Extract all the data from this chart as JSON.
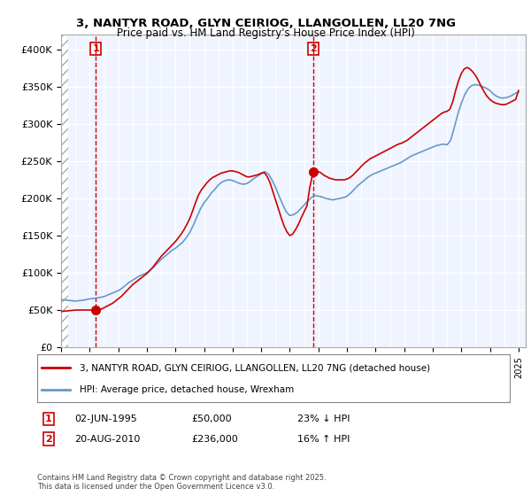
{
  "title1": "3, NANTYR ROAD, GLYN CEIRIOG, LLANGOLLEN, LL20 7NG",
  "title2": "Price paid vs. HM Land Registry's House Price Index (HPI)",
  "ylabel_ticks": [
    "£0",
    "£50K",
    "£100K",
    "£150K",
    "£200K",
    "£250K",
    "£300K",
    "£350K",
    "£400K"
  ],
  "ytick_values": [
    0,
    50000,
    100000,
    150000,
    200000,
    250000,
    300000,
    350000,
    400000
  ],
  "ylim": [
    0,
    420000
  ],
  "xlim_start": 1993.0,
  "xlim_end": 2025.5,
  "hpi_color": "#6699cc",
  "price_color": "#cc0000",
  "transaction1": {
    "date": "02-JUN-1995",
    "price": 50000,
    "label": "1",
    "x": 1995.42
  },
  "transaction2": {
    "date": "20-AUG-2010",
    "price": 236000,
    "label": "2",
    "x": 2010.63
  },
  "legend_line1": "3, NANTYR ROAD, GLYN CEIRIOG, LLANGOLLEN, LL20 7NG (detached house)",
  "legend_line2": "HPI: Average price, detached house, Wrexham",
  "annotation1": "02-JUN-1995          £50,000          23% ↓ HPI",
  "annotation2": "20-AUG-2010          £236,000          16% ↑ HPI",
  "footer": "Contains HM Land Registry data © Crown copyright and database right 2025.\nThis data is licensed under the Open Government Licence v3.0.",
  "hatch_end": 1993.5,
  "background_color": "#ffffff",
  "plot_bg": "#f0f4ff",
  "hatch_color": "#c8c8c8",
  "grid_color": "#ffffff",
  "hpi_data_x": [
    1993.0,
    1993.25,
    1993.5,
    1993.75,
    1994.0,
    1994.25,
    1994.5,
    1994.75,
    1995.0,
    1995.25,
    1995.5,
    1995.75,
    1996.0,
    1996.25,
    1996.5,
    1996.75,
    1997.0,
    1997.25,
    1997.5,
    1997.75,
    1998.0,
    1998.25,
    1998.5,
    1998.75,
    1999.0,
    1999.25,
    1999.5,
    1999.75,
    2000.0,
    2000.25,
    2000.5,
    2000.75,
    2001.0,
    2001.25,
    2001.5,
    2001.75,
    2002.0,
    2002.25,
    2002.5,
    2002.75,
    2003.0,
    2003.25,
    2003.5,
    2003.75,
    2004.0,
    2004.25,
    2004.5,
    2004.75,
    2005.0,
    2005.25,
    2005.5,
    2005.75,
    2006.0,
    2006.25,
    2006.5,
    2006.75,
    2007.0,
    2007.25,
    2007.5,
    2007.75,
    2008.0,
    2008.25,
    2008.5,
    2008.75,
    2009.0,
    2009.25,
    2009.5,
    2009.75,
    2010.0,
    2010.25,
    2010.5,
    2010.75,
    2011.0,
    2011.25,
    2011.5,
    2011.75,
    2012.0,
    2012.25,
    2012.5,
    2012.75,
    2013.0,
    2013.25,
    2013.5,
    2013.75,
    2014.0,
    2014.25,
    2014.5,
    2014.75,
    2015.0,
    2015.25,
    2015.5,
    2015.75,
    2016.0,
    2016.25,
    2016.5,
    2016.75,
    2017.0,
    2017.25,
    2017.5,
    2017.75,
    2018.0,
    2018.25,
    2018.5,
    2018.75,
    2019.0,
    2019.25,
    2019.5,
    2019.75,
    2020.0,
    2020.25,
    2020.5,
    2020.75,
    2021.0,
    2021.25,
    2021.5,
    2021.75,
    2022.0,
    2022.25,
    2022.5,
    2022.75,
    2023.0,
    2023.25,
    2023.5,
    2023.75,
    2024.0,
    2024.25,
    2024.5,
    2024.75,
    2025.0
  ],
  "hpi_data_y": [
    64000,
    63500,
    63000,
    62500,
    62000,
    62500,
    63000,
    64000,
    65000,
    65500,
    66000,
    67000,
    68000,
    70000,
    72000,
    74000,
    76000,
    79000,
    83000,
    87000,
    90000,
    93000,
    96000,
    98000,
    100000,
    104000,
    108000,
    113000,
    118000,
    122000,
    126000,
    130000,
    133000,
    137000,
    141000,
    147000,
    154000,
    164000,
    175000,
    186000,
    194000,
    200000,
    207000,
    212000,
    218000,
    222000,
    224000,
    225000,
    224000,
    222000,
    220000,
    219000,
    220000,
    223000,
    227000,
    230000,
    233000,
    236000,
    233000,
    225000,
    215000,
    203000,
    192000,
    182000,
    177000,
    178000,
    181000,
    186000,
    191000,
    196000,
    201000,
    204000,
    203000,
    202000,
    200000,
    199000,
    198000,
    199000,
    200000,
    201000,
    203000,
    207000,
    212000,
    217000,
    221000,
    225000,
    229000,
    232000,
    234000,
    236000,
    238000,
    240000,
    242000,
    244000,
    246000,
    248000,
    251000,
    254000,
    257000,
    259000,
    261000,
    263000,
    265000,
    267000,
    269000,
    271000,
    272000,
    273000,
    272000,
    278000,
    295000,
    313000,
    328000,
    340000,
    348000,
    352000,
    353000,
    352000,
    350000,
    348000,
    345000,
    340000,
    337000,
    335000,
    335000,
    336000,
    338000,
    341000,
    343000
  ],
  "price_data_x": [
    1993.0,
    1993.1,
    1993.2,
    1993.3,
    1993.4,
    1993.5,
    1993.6,
    1993.7,
    1993.8,
    1993.9,
    1994.0,
    1994.1,
    1994.2,
    1994.3,
    1994.4,
    1994.5,
    1994.6,
    1994.7,
    1994.8,
    1994.9,
    1995.0,
    1995.1,
    1995.2,
    1995.3,
    1995.42,
    1995.5,
    1995.6,
    1995.7,
    1995.8,
    1995.9,
    1996.0,
    1996.2,
    1996.4,
    1996.6,
    1996.8,
    1997.0,
    1997.2,
    1997.4,
    1997.6,
    1997.8,
    1998.0,
    1998.2,
    1998.4,
    1998.6,
    1998.8,
    1999.0,
    1999.2,
    1999.4,
    1999.6,
    1999.8,
    2000.0,
    2000.2,
    2000.4,
    2000.6,
    2000.8,
    2001.0,
    2001.2,
    2001.4,
    2001.6,
    2001.8,
    2002.0,
    2002.2,
    2002.4,
    2002.6,
    2002.8,
    2003.0,
    2003.2,
    2003.4,
    2003.6,
    2003.8,
    2004.0,
    2004.2,
    2004.4,
    2004.6,
    2004.8,
    2005.0,
    2005.2,
    2005.4,
    2005.6,
    2005.8,
    2006.0,
    2006.2,
    2006.4,
    2006.6,
    2006.8,
    2007.0,
    2007.2,
    2007.4,
    2007.6,
    2007.8,
    2008.0,
    2008.2,
    2008.4,
    2008.6,
    2008.8,
    2009.0,
    2009.2,
    2009.4,
    2009.6,
    2009.8,
    2010.0,
    2010.2,
    2010.4,
    2010.63,
    2010.8,
    2011.0,
    2011.2,
    2011.4,
    2011.6,
    2011.8,
    2012.0,
    2012.2,
    2012.4,
    2012.6,
    2012.8,
    2013.0,
    2013.2,
    2013.4,
    2013.6,
    2013.8,
    2014.0,
    2014.2,
    2014.4,
    2014.6,
    2014.8,
    2015.0,
    2015.2,
    2015.4,
    2015.6,
    2015.8,
    2016.0,
    2016.2,
    2016.4,
    2016.6,
    2016.8,
    2017.0,
    2017.2,
    2017.4,
    2017.6,
    2017.8,
    2018.0,
    2018.2,
    2018.4,
    2018.6,
    2018.8,
    2019.0,
    2019.2,
    2019.4,
    2019.6,
    2019.8,
    2020.0,
    2020.2,
    2020.4,
    2020.6,
    2020.8,
    2021.0,
    2021.2,
    2021.4,
    2021.6,
    2021.8,
    2022.0,
    2022.2,
    2022.4,
    2022.6,
    2022.8,
    2023.0,
    2023.2,
    2023.4,
    2023.6,
    2023.8,
    2024.0,
    2024.2,
    2024.4,
    2024.6,
    2024.8,
    2025.0
  ],
  "price_data_y": [
    48000,
    48200,
    48400,
    48600,
    48800,
    49000,
    49200,
    49400,
    49500,
    49700,
    49800,
    49900,
    50000,
    50000,
    50000,
    50000,
    50000,
    50000,
    50000,
    50000,
    50000,
    50000,
    50000,
    50000,
    50000,
    50000,
    50200,
    50500,
    51000,
    52000,
    53000,
    55000,
    57000,
    59000,
    62000,
    65000,
    68000,
    72000,
    76000,
    80000,
    84000,
    87000,
    90000,
    93000,
    96000,
    99000,
    103000,
    107000,
    112000,
    117000,
    122000,
    126000,
    130000,
    134000,
    138000,
    142000,
    147000,
    152000,
    158000,
    165000,
    173000,
    183000,
    194000,
    204000,
    211000,
    216000,
    221000,
    225000,
    228000,
    230000,
    232000,
    234000,
    235000,
    236000,
    237000,
    237000,
    236000,
    235000,
    233000,
    231000,
    229000,
    229000,
    230000,
    231000,
    232000,
    234000,
    235000,
    230000,
    222000,
    210000,
    198000,
    186000,
    174000,
    163000,
    155000,
    150000,
    152000,
    158000,
    165000,
    174000,
    182000,
    190000,
    215000,
    236000,
    237000,
    236000,
    234000,
    231000,
    229000,
    227000,
    226000,
    225000,
    225000,
    225000,
    225000,
    226000,
    228000,
    231000,
    235000,
    239000,
    243000,
    247000,
    250000,
    253000,
    255000,
    257000,
    259000,
    261000,
    263000,
    265000,
    267000,
    269000,
    271000,
    273000,
    274000,
    276000,
    278000,
    281000,
    284000,
    287000,
    290000,
    293000,
    296000,
    299000,
    302000,
    305000,
    308000,
    311000,
    314000,
    316000,
    317000,
    320000,
    330000,
    345000,
    358000,
    368000,
    374000,
    376000,
    374000,
    370000,
    365000,
    358000,
    350000,
    343000,
    337000,
    333000,
    330000,
    328000,
    327000,
    326000,
    326000,
    327000,
    329000,
    331000,
    333000,
    345000
  ]
}
